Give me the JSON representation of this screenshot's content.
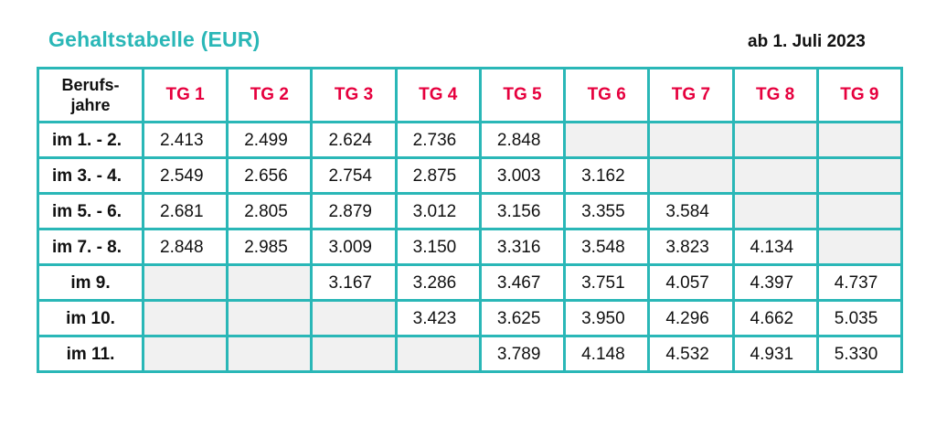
{
  "title": "Gehaltstabelle (EUR)",
  "valid_from": "ab 1. Juli 2023",
  "table": {
    "corner_header_line1": "Berufs-",
    "corner_header_line2": "jahre",
    "columns": [
      "TG 1",
      "TG 2",
      "TG 3",
      "TG 4",
      "TG 5",
      "TG 6",
      "TG 7",
      "TG 8",
      "TG 9"
    ],
    "rows": [
      {
        "label": "im 1. - 2.",
        "values": [
          "2.413",
          "2.499",
          "2.624",
          "2.736",
          "2.848",
          "",
          "",
          "",
          ""
        ]
      },
      {
        "label": "im 3. - 4.",
        "values": [
          "2.549",
          "2.656",
          "2.754",
          "2.875",
          "3.003",
          "3.162",
          "",
          "",
          ""
        ]
      },
      {
        "label": "im 5. - 6.",
        "values": [
          "2.681",
          "2.805",
          "2.879",
          "3.012",
          "3.156",
          "3.355",
          "3.584",
          "",
          ""
        ]
      },
      {
        "label": "im 7. - 8.",
        "values": [
          "2.848",
          "2.985",
          "3.009",
          "3.150",
          "3.316",
          "3.548",
          "3.823",
          "4.134",
          ""
        ]
      },
      {
        "label": "im 9.",
        "values": [
          "",
          "",
          "3.167",
          "3.286",
          "3.467",
          "3.751",
          "4.057",
          "4.397",
          "4.737"
        ]
      },
      {
        "label": "im 10.",
        "values": [
          "",
          "",
          "",
          "3.423",
          "3.625",
          "3.950",
          "4.296",
          "4.662",
          "5.035"
        ]
      },
      {
        "label": "im 11.",
        "values": [
          "",
          "",
          "",
          "",
          "3.789",
          "4.148",
          "4.532",
          "4.931",
          "5.330"
        ]
      }
    ]
  },
  "colors": {
    "accent": "#2ab7b7",
    "header_text": "#e6003e",
    "empty_cell": "#f1f1f1"
  }
}
